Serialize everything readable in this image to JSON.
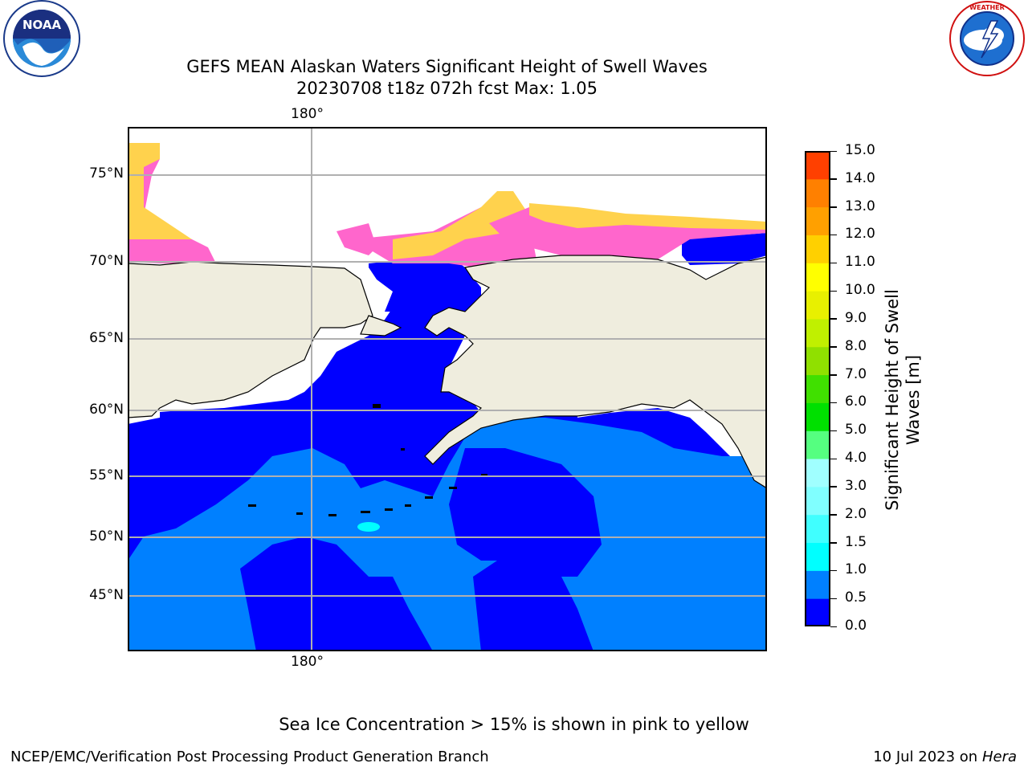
{
  "title": {
    "line1": "GEFS MEAN Alaskan Waters Significant Height of Swell Waves",
    "line2": "20230708 t18z 072h fcst   Max: 1.05"
  },
  "logos": {
    "noaa": {
      "text": "NOAA",
      "ring_text": "NATIONAL OCEANIC AND ATMOSPHERIC ADMINISTRATION · U.S. DEPARTMENT OF COMMERCE"
    },
    "nws": {
      "ring_text": "NATIONAL WEATHER SERVICE"
    }
  },
  "map": {
    "lon_labels": [
      "180°",
      "180°"
    ],
    "lat_labels": [
      "75°N",
      "70°N",
      "65°N",
      "60°N",
      "55°N",
      "50°N",
      "45°N"
    ],
    "colors": {
      "land": "#efedde",
      "deep_blue": "#0000ff",
      "mid_blue": "#0080ff",
      "ice_pink": "#ff66cc",
      "ice_yellow": "#ffd24d"
    }
  },
  "colorbar": {
    "label": "Significant Height of Swell Waves [m]",
    "ticks": [
      "15.0",
      "14.0",
      "13.0",
      "12.0",
      "11.0",
      "10.0",
      "9.0",
      "8.0",
      "7.0",
      "6.0",
      "5.0",
      "4.0",
      "3.0",
      "2.0",
      "1.5",
      "1.0",
      "0.5",
      "0.0"
    ],
    "colors": [
      "#0000ff",
      "#0080ff",
      "#00ffff",
      "#40ffff",
      "#80ffff",
      "#a0ffff",
      "#55ff80",
      "#00e000",
      "#40e000",
      "#90e000",
      "#c0f000",
      "#e8f000",
      "#ffff00",
      "#ffd000",
      "#ffa000",
      "#ff8000",
      "#ff4000",
      "#ff0000"
    ]
  },
  "footer": {
    "note": "Sea Ice Concentration > 15% is shown in pink to yellow",
    "left": "NCEP/EMC/Verification Post Processing Product Generation Branch",
    "right_date": "10 Jul 2023 on ",
    "right_host": "Hera"
  }
}
